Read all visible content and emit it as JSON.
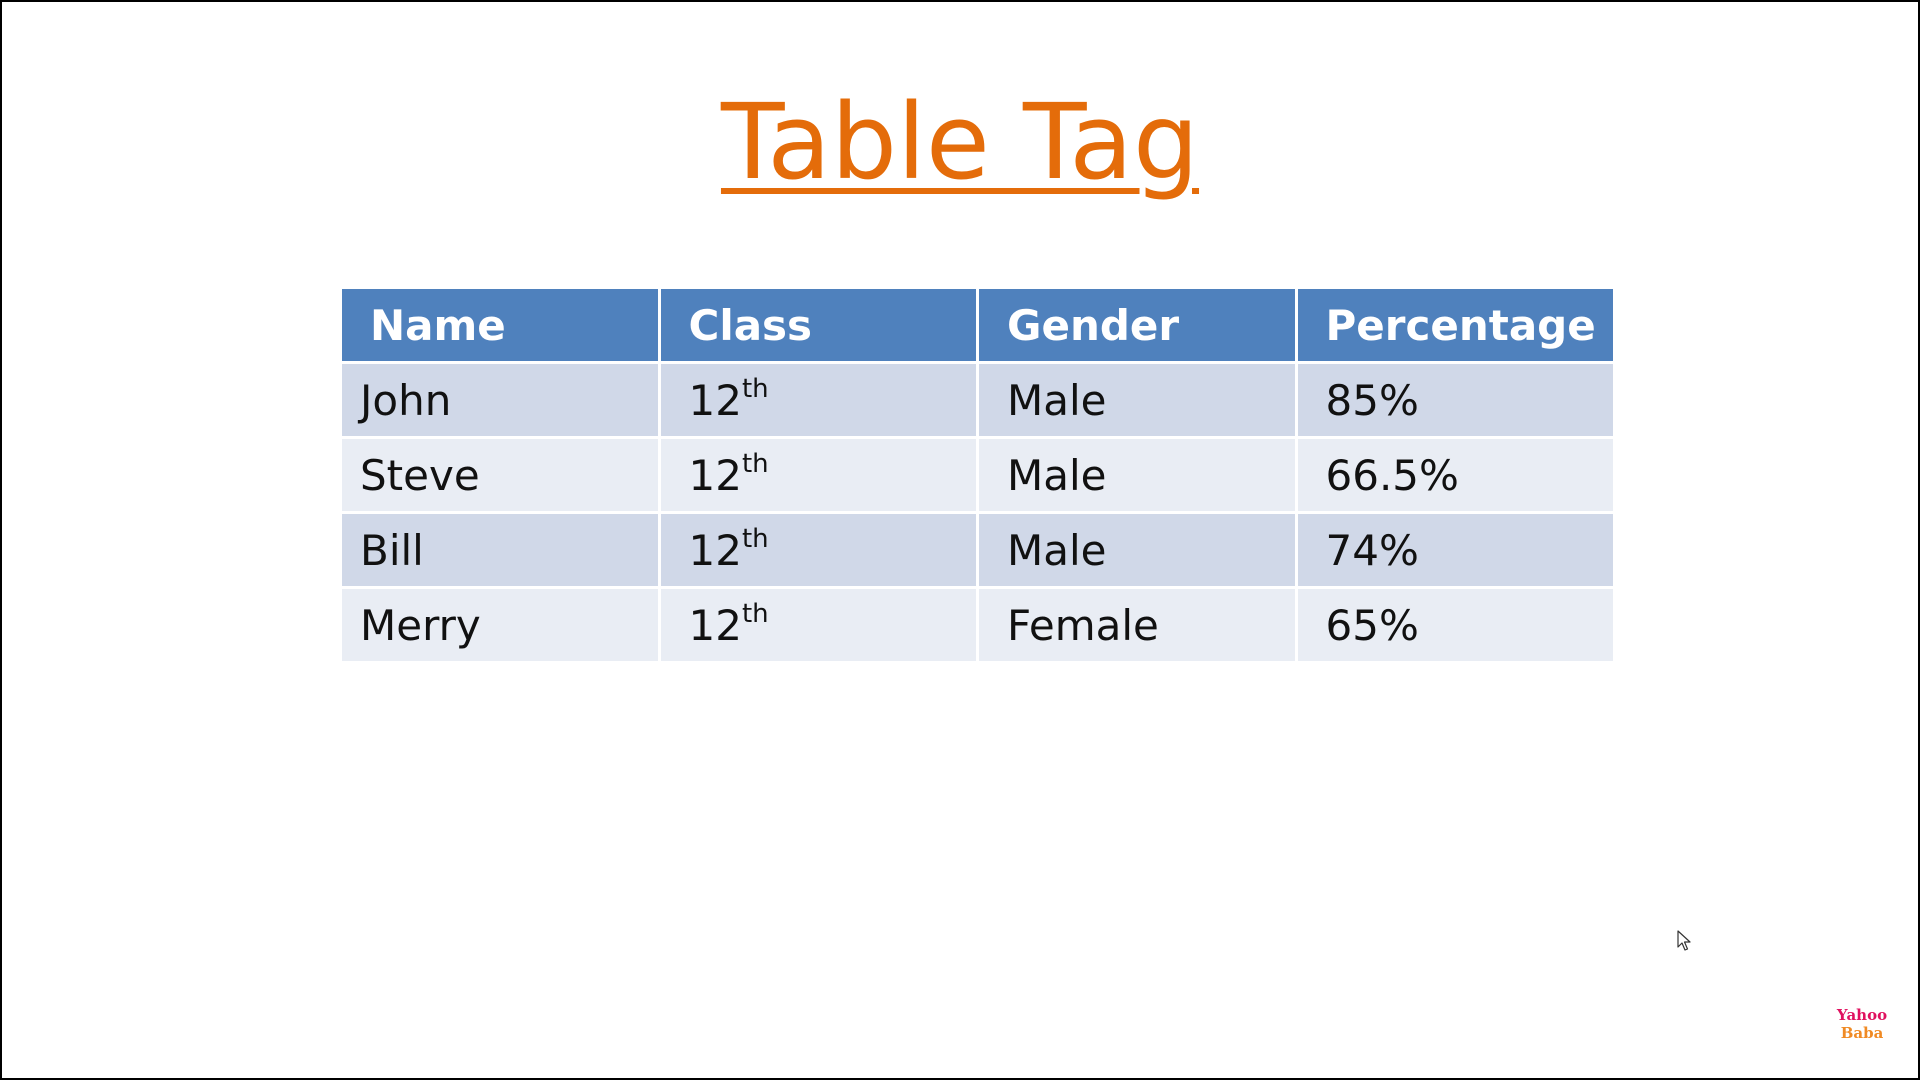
{
  "slide": {
    "title": "Table Tag"
  },
  "table": {
    "headers": [
      "Name",
      "Class",
      "Gender",
      "Percentage"
    ],
    "rows": [
      {
        "name": "John",
        "class_base": "12",
        "class_sup": "th",
        "gender": "Male",
        "percentage": "85%"
      },
      {
        "name": "Steve",
        "class_base": "12",
        "class_sup": "th",
        "gender": "Male",
        "percentage": "66.5%"
      },
      {
        "name": "Bill",
        "class_base": "12",
        "class_sup": "th",
        "gender": "Male",
        "percentage": "74%"
      },
      {
        "name": "Merry",
        "class_base": "12",
        "class_sup": "th",
        "gender": "Female",
        "percentage": "65%"
      }
    ],
    "colors": {
      "header": "#4F81BD",
      "row_odd": "#D0D8E8",
      "row_even": "#E9EDF4",
      "title": "#E46C0A"
    }
  },
  "watermark": {
    "line1": "Yahoo",
    "line2": "Baba"
  },
  "cursor": {
    "icon": "mouse-pointer-icon"
  }
}
